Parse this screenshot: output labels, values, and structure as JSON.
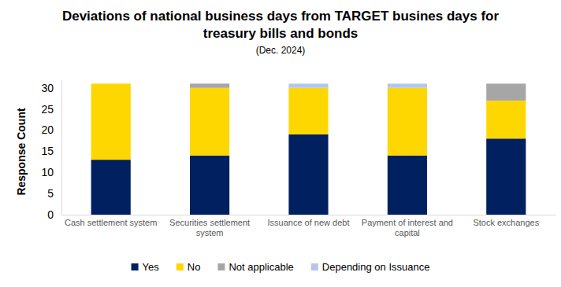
{
  "chart_data": {
    "type": "bar",
    "stacked": true,
    "title": "Deviations of national business days from TARGET busines days for treasury bills and bonds",
    "subtitle": "(Dec. 2024)",
    "y_label": "Response Count",
    "categories": [
      "Cash settlement system",
      "Securities settlement system",
      "Issuance of new debt",
      "Payment of interest and capital",
      "Stock exchanges"
    ],
    "series": [
      {
        "name": "Yes",
        "color": "#002060",
        "values": [
          13,
          14,
          19,
          14,
          18
        ]
      },
      {
        "name": "No",
        "color": "#ffd700",
        "values": [
          18,
          16,
          11,
          16,
          9
        ]
      },
      {
        "name": "Not applicable",
        "color": "#a6a6a6",
        "values": [
          0,
          1,
          0,
          0,
          4
        ]
      },
      {
        "name": "Depending on Issuance",
        "color": "#b4c7e7",
        "values": [
          0,
          0,
          1,
          1,
          0
        ]
      }
    ],
    "ylim": [
      0,
      32
    ],
    "yticks": [
      0,
      5,
      10,
      15,
      20,
      25,
      30
    ],
    "grid": false,
    "legend": "bottom"
  }
}
